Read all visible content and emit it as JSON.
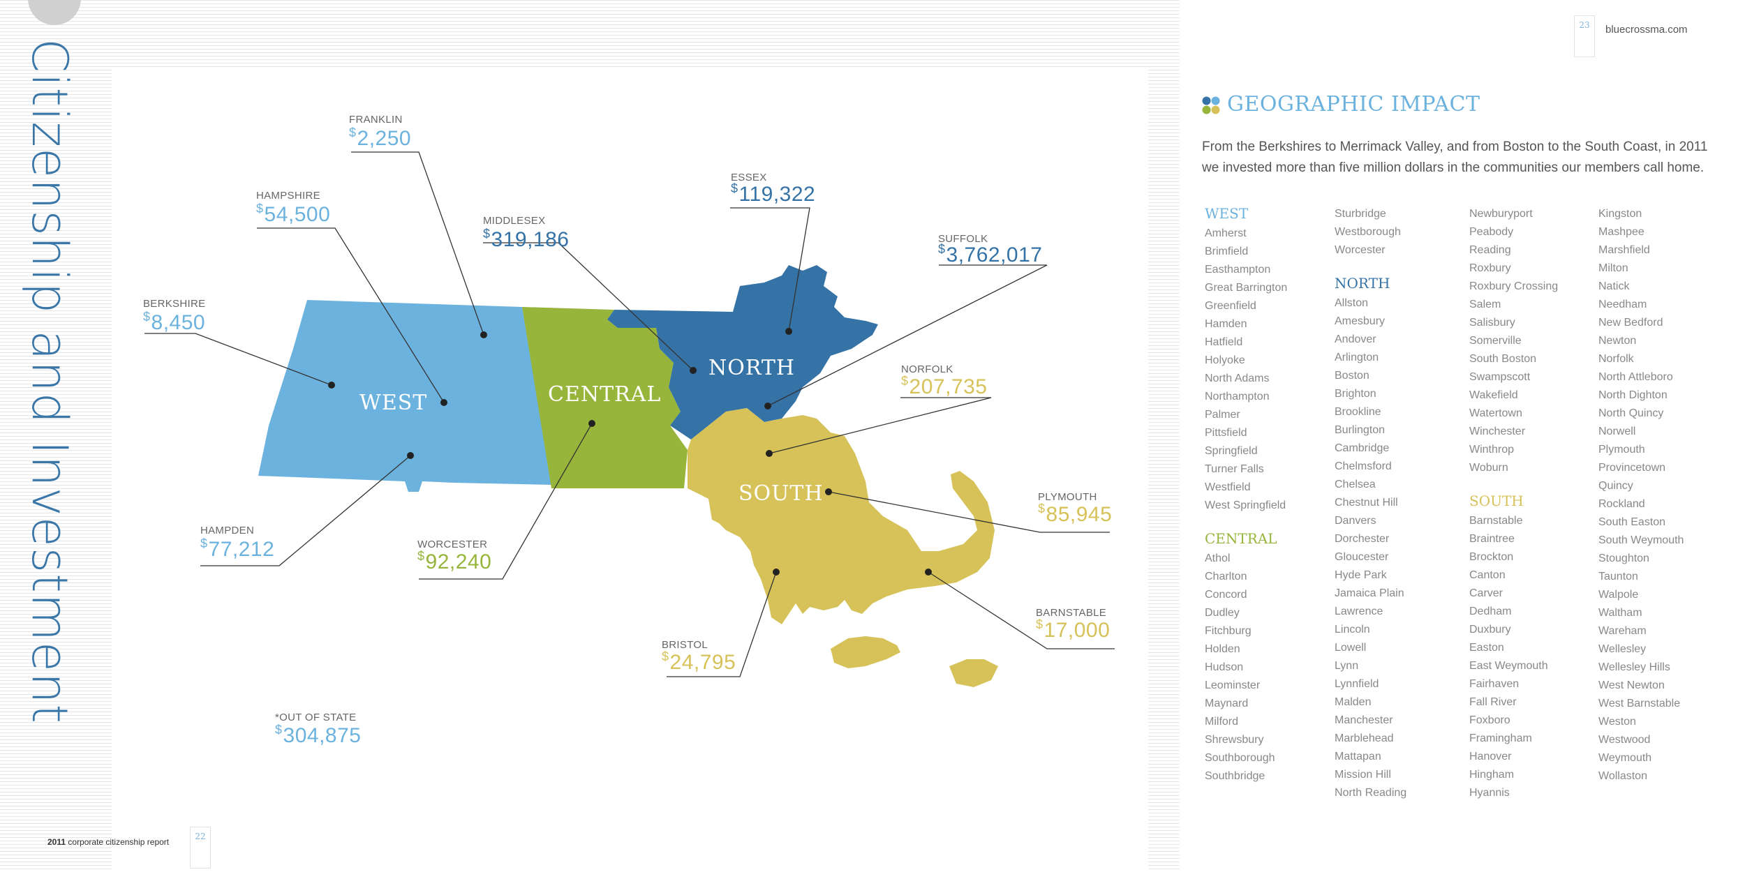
{
  "document": {
    "vertical_title": "Citizenship and Investment",
    "footer_year": "2011",
    "footer_text": "corporate citizenship report",
    "page_left": "22",
    "page_right": "23",
    "site": "bluecrossma.com"
  },
  "colors": {
    "west": "#6cb2de",
    "central": "#97b53b",
    "north": "#3572a5",
    "south": "#d6c258"
  },
  "map": {
    "regions": {
      "west": "WEST",
      "central": "CENTRAL",
      "north": "NORTH",
      "south": "SOUTH"
    },
    "counties": [
      {
        "name": "FRANKLIN",
        "amount": "2,250",
        "region": "west"
      },
      {
        "name": "HAMPSHIRE",
        "amount": "54,500",
        "region": "west"
      },
      {
        "name": "BERKSHIRE",
        "amount": "8,450",
        "region": "west"
      },
      {
        "name": "HAMPDEN",
        "amount": "77,212",
        "region": "west"
      },
      {
        "name": "MIDDLESEX",
        "amount": "319,186",
        "region": "north"
      },
      {
        "name": "ESSEX",
        "amount": "119,322",
        "region": "north"
      },
      {
        "name": "SUFFOLK",
        "amount": "3,762,017",
        "region": "north"
      },
      {
        "name": "NORFOLK",
        "amount": "207,735",
        "region": "south"
      },
      {
        "name": "WORCESTER",
        "amount": "92,240",
        "region": "central"
      },
      {
        "name": "PLYMOUTH",
        "amount": "85,945",
        "region": "south"
      },
      {
        "name": "BARNSTABLE",
        "amount": "17,000",
        "region": "south"
      },
      {
        "name": "BRISTOL",
        "amount": "24,795",
        "region": "south"
      },
      {
        "name": "*OUT OF STATE",
        "amount": "304,875",
        "region": "west"
      }
    ],
    "currency_symbol": "$"
  },
  "impact": {
    "heading": "GEOGRAPHIC IMPACT",
    "intro": "From the Berkshires to Merrimack Valley, and from Boston to the South Coast, in 2011 we invested more than five million dollars in the communities our members call home.",
    "columns": [
      [
        {
          "region": "WEST",
          "color": "west",
          "towns": [
            "Amherst",
            "Brimfield",
            "Easthampton",
            "Great Barrington",
            "Greenfield",
            "Hamden",
            "Hatfield",
            "Holyoke",
            "North Adams",
            "Northampton",
            "Palmer",
            "Pittsfield",
            "Springfield",
            "Turner Falls",
            "Westfield",
            "West Springfield"
          ]
        },
        {
          "region": "CENTRAL",
          "color": "central",
          "towns": [
            "Athol",
            "Charlton",
            "Concord",
            "Dudley",
            "Fitchburg",
            "Holden",
            "Hudson",
            "Leominster",
            "Maynard",
            "Milford",
            "Shrewsbury",
            "Southborough",
            "Southbridge"
          ]
        }
      ],
      [
        {
          "region": "",
          "color": "central",
          "towns": [
            "Sturbridge",
            "Westborough",
            "Worcester"
          ]
        },
        {
          "region": "NORTH",
          "color": "north",
          "towns": [
            "Allston",
            "Amesbury",
            "Andover",
            "Arlington",
            "Boston",
            "Brighton",
            "Brookline",
            "Burlington",
            "Cambridge",
            "Chelmsford",
            "Chelsea",
            "Chestnut Hill",
            "Danvers",
            "Dorchester",
            "Gloucester",
            "Hyde Park",
            "Jamaica Plain",
            "Lawrence",
            "Lincoln",
            "Lowell",
            "Lynn",
            "Lynnfield",
            "Malden",
            "Manchester",
            "Marblehead",
            "Mattapan",
            "Mission Hill",
            "North Reading"
          ]
        }
      ],
      [
        {
          "region": "",
          "color": "north",
          "towns": [
            "Newburyport",
            "Peabody",
            "Reading",
            "Roxbury",
            "Roxbury Crossing",
            "Salem",
            "Salisbury",
            "Somerville",
            "South Boston",
            "Swampscott",
            "Wakefield",
            "Watertown",
            "Winchester",
            "Winthrop",
            "Woburn"
          ]
        },
        {
          "region": "SOUTH",
          "color": "south",
          "towns": [
            "Barnstable",
            "Braintree",
            "Brockton",
            "Canton",
            "Carver",
            "Dedham",
            "Duxbury",
            "Easton",
            "East Weymouth",
            "Fairhaven",
            "Fall River",
            "Foxboro",
            "Framingham",
            "Hanover",
            "Hingham",
            "Hyannis"
          ]
        }
      ],
      [
        {
          "region": "",
          "color": "south",
          "towns": [
            "Kingston",
            "Mashpee",
            "Marshfield",
            "Milton",
            "Natick",
            "Needham",
            "New Bedford",
            "Newton",
            "Norfolk",
            "North Attleboro",
            "North Dighton",
            "North Quincy",
            "Norwell",
            "Plymouth",
            "Provincetown",
            "Quincy",
            "Rockland",
            "South Easton",
            "South Weymouth",
            "Stoughton",
            "Taunton",
            "Walpole",
            "Waltham",
            "Wareham",
            "Wellesley",
            "Wellesley Hills",
            "West Newton",
            "West Barnstable",
            "Weston",
            "Westwood",
            "Weymouth",
            "Wollaston"
          ]
        }
      ]
    ]
  }
}
